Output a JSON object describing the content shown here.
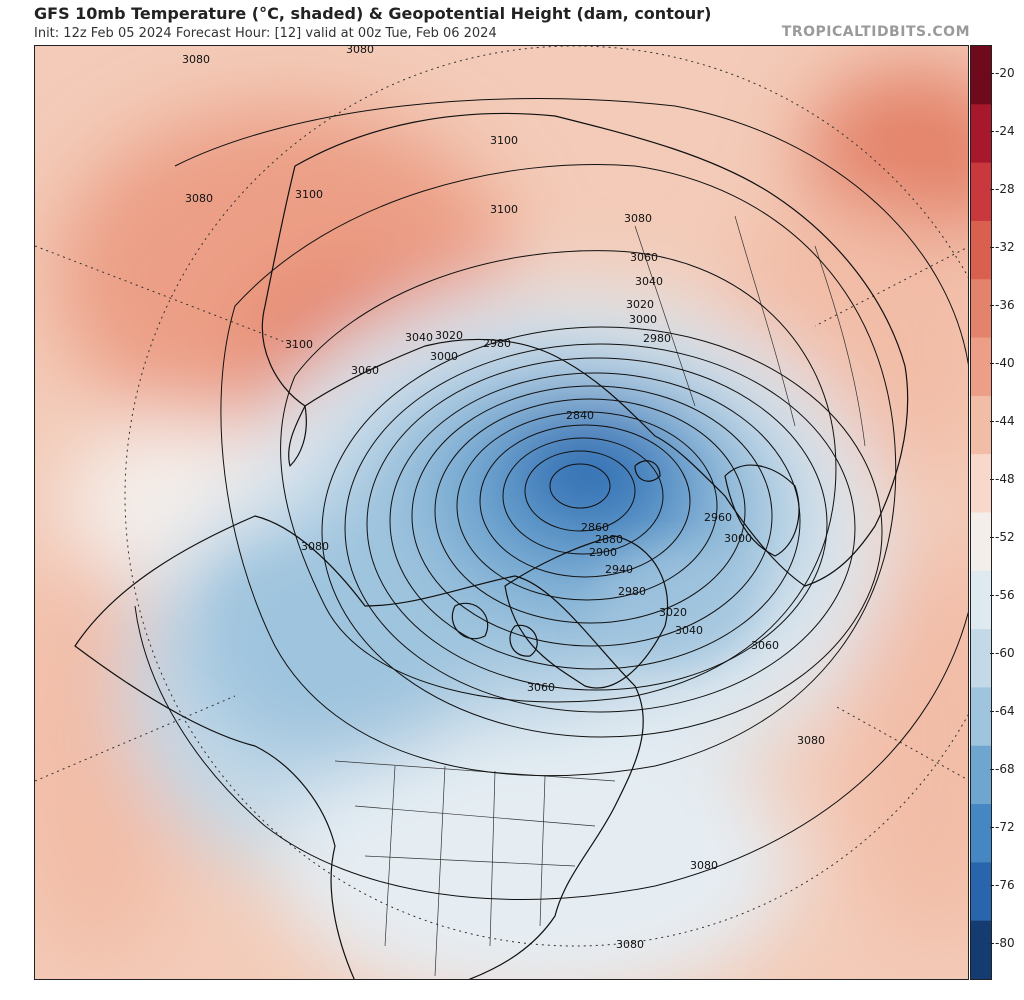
{
  "header": {
    "title": "GFS 10mb Temperature (°C, shaded) & Geopotential Height (dam, contour)",
    "subtitle": "Init: 12z Feb 05 2024   Forecast Hour: [12]   valid at 00z Tue, Feb 06 2024",
    "brand": "TROPICALTIDBITS.COM"
  },
  "colorbar": {
    "ticks": [
      "-20",
      "-24",
      "-28",
      "-32",
      "-36",
      "-40",
      "-44",
      "-48",
      "-52",
      "-56",
      "-60",
      "-64",
      "-68",
      "-72",
      "-76",
      "-80"
    ],
    "colors": [
      "#6e0a1c",
      "#a8182c",
      "#c9383d",
      "#d9604f",
      "#e4836b",
      "#ec9f86",
      "#f2bda7",
      "#f7d8ca",
      "#f4eeea",
      "#dfe9f0",
      "#c3d9e8",
      "#9fc4de",
      "#6fa6d0",
      "#4487c3",
      "#2865ad",
      "#143c70"
    ]
  },
  "map": {
    "contour_labels": [
      {
        "text": "3080",
        "value": 3080
      },
      {
        "text": "3080",
        "value": 3080
      },
      {
        "text": "3080",
        "value": 3080
      },
      {
        "text": "3100",
        "value": 3100
      },
      {
        "text": "3100",
        "value": 3100
      },
      {
        "text": "3100",
        "value": 3100
      },
      {
        "text": "3100",
        "value": 3100
      },
      {
        "text": "3080",
        "value": 3080
      },
      {
        "text": "3060",
        "value": 3060
      },
      {
        "text": "3040",
        "value": 3040
      },
      {
        "text": "3020",
        "value": 3020
      },
      {
        "text": "3000",
        "value": 3000
      },
      {
        "text": "2980",
        "value": 2980
      },
      {
        "text": "3040",
        "value": 3040
      },
      {
        "text": "3020",
        "value": 3020
      },
      {
        "text": "3000",
        "value": 3000
      },
      {
        "text": "2980",
        "value": 2980
      },
      {
        "text": "3060",
        "value": 3060
      },
      {
        "text": "2840",
        "value": 2840
      },
      {
        "text": "2860",
        "value": 2860
      },
      {
        "text": "2880",
        "value": 2880
      },
      {
        "text": "2900",
        "value": 2900
      },
      {
        "text": "2940",
        "value": 2940
      },
      {
        "text": "2980",
        "value": 2980
      },
      {
        "text": "3020",
        "value": 3020
      },
      {
        "text": "3040",
        "value": 3040
      },
      {
        "text": "3060",
        "value": 3060
      },
      {
        "text": "2960",
        "value": 2960
      },
      {
        "text": "3000",
        "value": 3000
      },
      {
        "text": "3080",
        "value": 3080
      },
      {
        "text": "3060",
        "value": 3060
      },
      {
        "text": "3080",
        "value": 3080
      },
      {
        "text": "3080",
        "value": 3080
      },
      {
        "text": "3080",
        "value": 3080
      }
    ]
  }
}
